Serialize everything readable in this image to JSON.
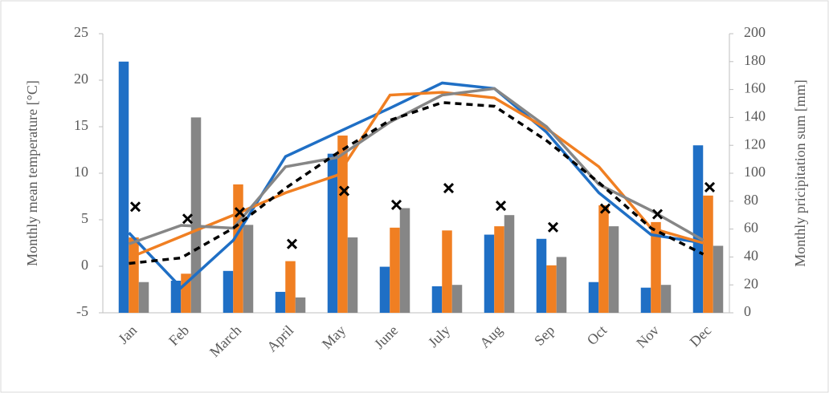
{
  "chart_data": {
    "type": "combo",
    "y_label": "Monthly mean temperature [°C]",
    "y2_label": "Monthly pricipitation sum [mm]",
    "categories": [
      "Jan",
      "Feb",
      "March",
      "April",
      "May",
      "June",
      "July",
      "Aug",
      "Sep",
      "Oct",
      "Nov",
      "Dec"
    ],
    "ylim": [
      -5,
      25
    ],
    "yticks": [
      -5,
      0,
      5,
      10,
      15,
      20,
      25
    ],
    "y2lim": [
      0,
      200
    ],
    "y2ticks": [
      0,
      20,
      40,
      60,
      80,
      100,
      120,
      140,
      160,
      180,
      200
    ],
    "grid": false,
    "series": [
      {
        "kind": "bar",
        "axis": "y2",
        "color": "#1f6fc5",
        "values": [
          180,
          23,
          30,
          15,
          114,
          33,
          19,
          56,
          53,
          22,
          18,
          120
        ]
      },
      {
        "kind": "bar",
        "axis": "y2",
        "color": "#f07f22",
        "values": [
          54,
          28,
          92,
          37,
          127,
          61,
          59,
          62,
          34,
          77,
          65,
          84
        ]
      },
      {
        "kind": "bar",
        "axis": "y2",
        "color": "#868686",
        "values": [
          22,
          140,
          63,
          11,
          54,
          75,
          20,
          70,
          40,
          62,
          20,
          48
        ]
      },
      {
        "kind": "line",
        "color": "#1f6fc5",
        "values": [
          3.6,
          -2.3,
          2.8,
          11.8,
          14.4,
          17,
          19.7,
          19.1,
          14.4,
          7.9,
          3.4,
          2.5
        ]
      },
      {
        "kind": "line",
        "color": "#f07f22",
        "values": [
          0.9,
          3.2,
          5.5,
          7.9,
          9.8,
          18.4,
          18.7,
          18.1,
          14.8,
          10.7,
          4.1,
          2.5
        ]
      },
      {
        "kind": "line",
        "color": "#868686",
        "values": [
          2.4,
          4.4,
          4.1,
          10.7,
          11.7,
          15.5,
          18.4,
          19.1,
          15,
          8.8,
          6,
          2.8
        ]
      },
      {
        "kind": "line",
        "dashed": true,
        "color": "#000000",
        "values": [
          0.3,
          0.9,
          4.1,
          8.4,
          12.2,
          15.7,
          17.6,
          17.2,
          13.5,
          9,
          4.1,
          1.3
        ]
      },
      {
        "kind": "marker",
        "color": "#000000",
        "values": [
          6.4,
          5.1,
          5.8,
          2.4,
          8.1,
          6.6,
          8.4,
          6.5,
          4.2,
          6.2,
          5.6,
          8.5
        ]
      }
    ]
  }
}
